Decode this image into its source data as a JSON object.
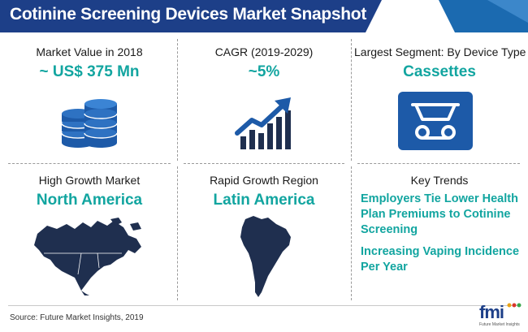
{
  "title": "Cotinine Screening Devices Market Snapshot",
  "cells": {
    "market_value": {
      "label": "Market Value in 2018",
      "value": "~ US$ 375 Mn"
    },
    "cagr": {
      "label": "CAGR (2019-2029)",
      "value": "~5%"
    },
    "largest_segment": {
      "label": "Largest Segment: By Device Type",
      "value": "Cassettes"
    },
    "high_growth": {
      "label": "High Growth Market",
      "value": "North America"
    },
    "rapid_growth": {
      "label": "Rapid Growth Region",
      "value": "Latin America"
    },
    "key_trends": {
      "label": "Key Trends",
      "items": [
        "Employers Tie Lower Health Plan Premiums to Cotinine Screening",
        "Increasing Vaping Incidence Per Year"
      ]
    }
  },
  "footer": {
    "source": "Source: Future Market Insights, 2019"
  },
  "logo": {
    "text": "fmi",
    "subtext": "Future Market Insights"
  },
  "icons": {
    "coins": "coin-stack-icon",
    "growth": "growth-chart-icon",
    "cassette": "cassette-icon",
    "north_america": "north-america-map-icon",
    "latin_america": "latin-america-map-icon"
  },
  "colors": {
    "title_bar": "#1d3f88",
    "accent": "#12a5a0",
    "icon_blue": "#1d5aa8",
    "icon_dark": "#1f2f4f"
  }
}
